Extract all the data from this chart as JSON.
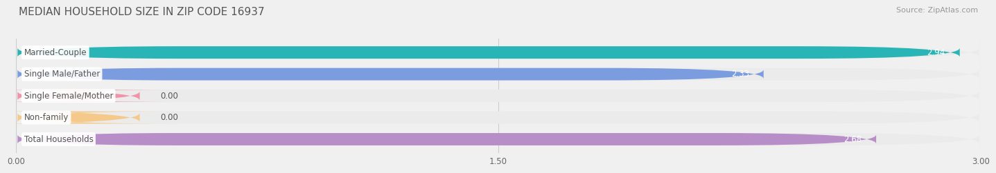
{
  "title": "MEDIAN HOUSEHOLD SIZE IN ZIP CODE 16937",
  "source": "Source: ZipAtlas.com",
  "categories": [
    "Married-Couple",
    "Single Male/Father",
    "Single Female/Mother",
    "Non-family",
    "Total Households"
  ],
  "values": [
    2.94,
    2.33,
    0.0,
    0.0,
    2.68
  ],
  "bar_colors": [
    "#29b5b5",
    "#7b9de0",
    "#f093a8",
    "#f5c98a",
    "#b88ec8"
  ],
  "bar_bg_colors": [
    "#ebebeb",
    "#ebebeb",
    "#ebebeb",
    "#ebebeb",
    "#ebebeb"
  ],
  "xlim": [
    0.0,
    3.0
  ],
  "xticks": [
    0.0,
    1.5,
    3.0
  ],
  "xtick_labels": [
    "0.00",
    "1.50",
    "3.00"
  ],
  "title_fontsize": 11,
  "source_fontsize": 8,
  "label_fontsize": 8.5,
  "value_fontsize": 8.5,
  "background_color": "#f0f0f0",
  "bar_height": 0.58,
  "zero_bar_width": 0.38,
  "label_box_color": "#ffffff",
  "label_text_color": "#555555",
  "value_text_color": "#ffffff",
  "zero_value_color": "#555555"
}
